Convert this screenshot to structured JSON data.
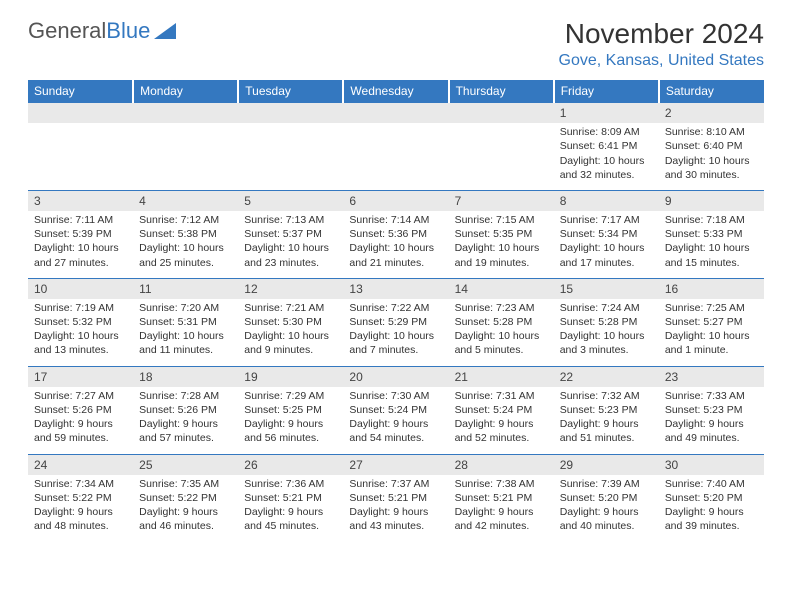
{
  "colors": {
    "brand_blue": "#3478c0",
    "header_bg": "#3478c0",
    "header_text": "#ffffff",
    "daybar_bg": "#e9e9e9",
    "text": "#333333",
    "cell_border": "#3478c0",
    "background": "#ffffff"
  },
  "logo": {
    "part1": "General",
    "part2": "Blue"
  },
  "title": "November 2024",
  "location": "Gove, Kansas, United States",
  "day_headers": [
    "Sunday",
    "Monday",
    "Tuesday",
    "Wednesday",
    "Thursday",
    "Friday",
    "Saturday"
  ],
  "weeks": [
    [
      {
        "empty": true
      },
      {
        "empty": true
      },
      {
        "empty": true
      },
      {
        "empty": true
      },
      {
        "empty": true
      },
      {
        "daynum": "1",
        "sunrise": "Sunrise: 8:09 AM",
        "sunset": "Sunset: 6:41 PM",
        "daylight1": "Daylight: 10 hours",
        "daylight2": "and 32 minutes."
      },
      {
        "daynum": "2",
        "sunrise": "Sunrise: 8:10 AM",
        "sunset": "Sunset: 6:40 PM",
        "daylight1": "Daylight: 10 hours",
        "daylight2": "and 30 minutes."
      }
    ],
    [
      {
        "daynum": "3",
        "sunrise": "Sunrise: 7:11 AM",
        "sunset": "Sunset: 5:39 PM",
        "daylight1": "Daylight: 10 hours",
        "daylight2": "and 27 minutes."
      },
      {
        "daynum": "4",
        "sunrise": "Sunrise: 7:12 AM",
        "sunset": "Sunset: 5:38 PM",
        "daylight1": "Daylight: 10 hours",
        "daylight2": "and 25 minutes."
      },
      {
        "daynum": "5",
        "sunrise": "Sunrise: 7:13 AM",
        "sunset": "Sunset: 5:37 PM",
        "daylight1": "Daylight: 10 hours",
        "daylight2": "and 23 minutes."
      },
      {
        "daynum": "6",
        "sunrise": "Sunrise: 7:14 AM",
        "sunset": "Sunset: 5:36 PM",
        "daylight1": "Daylight: 10 hours",
        "daylight2": "and 21 minutes."
      },
      {
        "daynum": "7",
        "sunrise": "Sunrise: 7:15 AM",
        "sunset": "Sunset: 5:35 PM",
        "daylight1": "Daylight: 10 hours",
        "daylight2": "and 19 minutes."
      },
      {
        "daynum": "8",
        "sunrise": "Sunrise: 7:17 AM",
        "sunset": "Sunset: 5:34 PM",
        "daylight1": "Daylight: 10 hours",
        "daylight2": "and 17 minutes."
      },
      {
        "daynum": "9",
        "sunrise": "Sunrise: 7:18 AM",
        "sunset": "Sunset: 5:33 PM",
        "daylight1": "Daylight: 10 hours",
        "daylight2": "and 15 minutes."
      }
    ],
    [
      {
        "daynum": "10",
        "sunrise": "Sunrise: 7:19 AM",
        "sunset": "Sunset: 5:32 PM",
        "daylight1": "Daylight: 10 hours",
        "daylight2": "and 13 minutes."
      },
      {
        "daynum": "11",
        "sunrise": "Sunrise: 7:20 AM",
        "sunset": "Sunset: 5:31 PM",
        "daylight1": "Daylight: 10 hours",
        "daylight2": "and 11 minutes."
      },
      {
        "daynum": "12",
        "sunrise": "Sunrise: 7:21 AM",
        "sunset": "Sunset: 5:30 PM",
        "daylight1": "Daylight: 10 hours",
        "daylight2": "and 9 minutes."
      },
      {
        "daynum": "13",
        "sunrise": "Sunrise: 7:22 AM",
        "sunset": "Sunset: 5:29 PM",
        "daylight1": "Daylight: 10 hours",
        "daylight2": "and 7 minutes."
      },
      {
        "daynum": "14",
        "sunrise": "Sunrise: 7:23 AM",
        "sunset": "Sunset: 5:28 PM",
        "daylight1": "Daylight: 10 hours",
        "daylight2": "and 5 minutes."
      },
      {
        "daynum": "15",
        "sunrise": "Sunrise: 7:24 AM",
        "sunset": "Sunset: 5:28 PM",
        "daylight1": "Daylight: 10 hours",
        "daylight2": "and 3 minutes."
      },
      {
        "daynum": "16",
        "sunrise": "Sunrise: 7:25 AM",
        "sunset": "Sunset: 5:27 PM",
        "daylight1": "Daylight: 10 hours",
        "daylight2": "and 1 minute."
      }
    ],
    [
      {
        "daynum": "17",
        "sunrise": "Sunrise: 7:27 AM",
        "sunset": "Sunset: 5:26 PM",
        "daylight1": "Daylight: 9 hours",
        "daylight2": "and 59 minutes."
      },
      {
        "daynum": "18",
        "sunrise": "Sunrise: 7:28 AM",
        "sunset": "Sunset: 5:26 PM",
        "daylight1": "Daylight: 9 hours",
        "daylight2": "and 57 minutes."
      },
      {
        "daynum": "19",
        "sunrise": "Sunrise: 7:29 AM",
        "sunset": "Sunset: 5:25 PM",
        "daylight1": "Daylight: 9 hours",
        "daylight2": "and 56 minutes."
      },
      {
        "daynum": "20",
        "sunrise": "Sunrise: 7:30 AM",
        "sunset": "Sunset: 5:24 PM",
        "daylight1": "Daylight: 9 hours",
        "daylight2": "and 54 minutes."
      },
      {
        "daynum": "21",
        "sunrise": "Sunrise: 7:31 AM",
        "sunset": "Sunset: 5:24 PM",
        "daylight1": "Daylight: 9 hours",
        "daylight2": "and 52 minutes."
      },
      {
        "daynum": "22",
        "sunrise": "Sunrise: 7:32 AM",
        "sunset": "Sunset: 5:23 PM",
        "daylight1": "Daylight: 9 hours",
        "daylight2": "and 51 minutes."
      },
      {
        "daynum": "23",
        "sunrise": "Sunrise: 7:33 AM",
        "sunset": "Sunset: 5:23 PM",
        "daylight1": "Daylight: 9 hours",
        "daylight2": "and 49 minutes."
      }
    ],
    [
      {
        "daynum": "24",
        "sunrise": "Sunrise: 7:34 AM",
        "sunset": "Sunset: 5:22 PM",
        "daylight1": "Daylight: 9 hours",
        "daylight2": "and 48 minutes."
      },
      {
        "daynum": "25",
        "sunrise": "Sunrise: 7:35 AM",
        "sunset": "Sunset: 5:22 PM",
        "daylight1": "Daylight: 9 hours",
        "daylight2": "and 46 minutes."
      },
      {
        "daynum": "26",
        "sunrise": "Sunrise: 7:36 AM",
        "sunset": "Sunset: 5:21 PM",
        "daylight1": "Daylight: 9 hours",
        "daylight2": "and 45 minutes."
      },
      {
        "daynum": "27",
        "sunrise": "Sunrise: 7:37 AM",
        "sunset": "Sunset: 5:21 PM",
        "daylight1": "Daylight: 9 hours",
        "daylight2": "and 43 minutes."
      },
      {
        "daynum": "28",
        "sunrise": "Sunrise: 7:38 AM",
        "sunset": "Sunset: 5:21 PM",
        "daylight1": "Daylight: 9 hours",
        "daylight2": "and 42 minutes."
      },
      {
        "daynum": "29",
        "sunrise": "Sunrise: 7:39 AM",
        "sunset": "Sunset: 5:20 PM",
        "daylight1": "Daylight: 9 hours",
        "daylight2": "and 40 minutes."
      },
      {
        "daynum": "30",
        "sunrise": "Sunrise: 7:40 AM",
        "sunset": "Sunset: 5:20 PM",
        "daylight1": "Daylight: 9 hours",
        "daylight2": "and 39 minutes."
      }
    ]
  ]
}
